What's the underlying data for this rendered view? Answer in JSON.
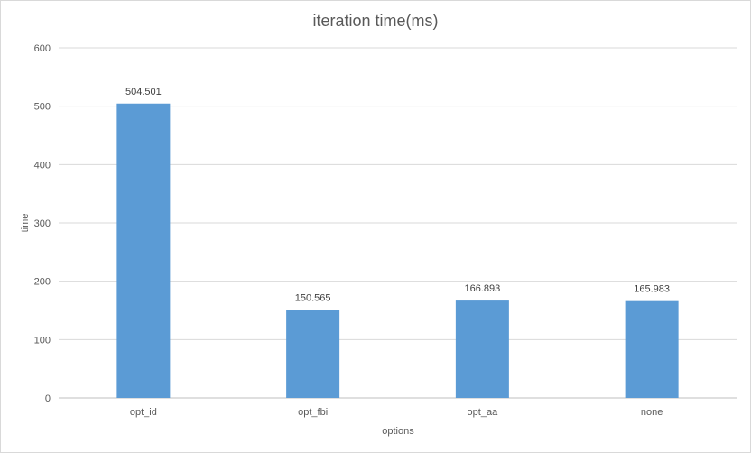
{
  "chart_data": {
    "type": "bar",
    "title": "iteration time(ms)",
    "xlabel": "options",
    "ylabel": "time",
    "categories": [
      "opt_id",
      "opt_fbi",
      "opt_aa",
      "none"
    ],
    "values": [
      504.501,
      150.565,
      166.893,
      165.983
    ],
    "value_labels": [
      "504.501",
      "150.565",
      "166.893",
      "165.983"
    ],
    "ylim": [
      0,
      600
    ],
    "yticks": [
      0,
      100,
      200,
      300,
      400,
      500,
      600
    ],
    "grid": true,
    "legend": "none",
    "bar_color": "#5b9bd5"
  }
}
